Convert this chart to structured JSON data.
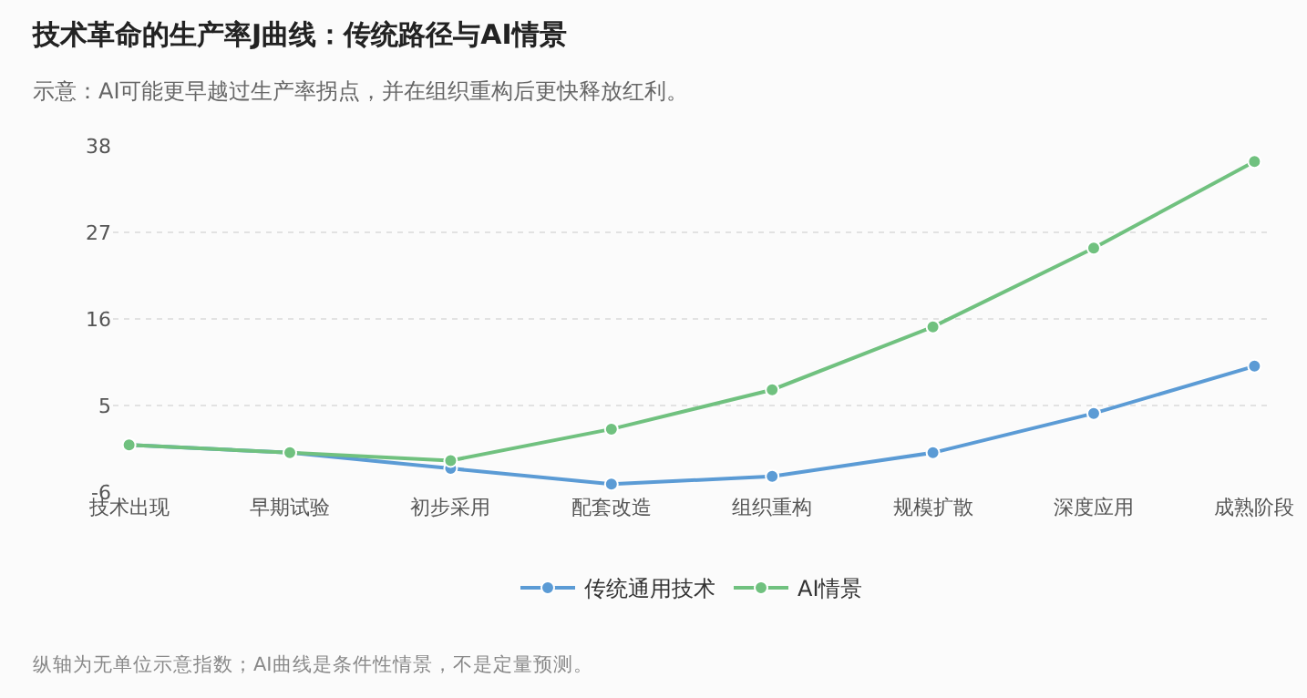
{
  "chart_data": {
    "type": "line",
    "title": "技术革命的生产率J曲线：传统路径与AI情景",
    "subtitle": "示意：AI可能更早越过生产率拐点，并在组织重构后更快释放红利。",
    "categories": [
      "技术出现",
      "早期试验",
      "初步采用",
      "配套改造",
      "组织重构",
      "规模扩散",
      "深度应用",
      "成熟阶段"
    ],
    "series": [
      {
        "name": "传统通用技术",
        "color": "#5b9bd5",
        "values": [
          0,
          -1,
          -3,
          -5,
          -4,
          -1,
          4,
          10
        ]
      },
      {
        "name": "AI情景",
        "color": "#70c17f",
        "values": [
          0,
          -1,
          -2,
          2,
          7,
          15,
          25,
          36
        ]
      }
    ],
    "ylim": [
      -6,
      38
    ],
    "yticks": [
      -6,
      5,
      16,
      27,
      38
    ],
    "grid": "y",
    "legend": "bottom",
    "marker": "circle",
    "line_style": "solid",
    "annotations": [
      "纵轴为无单位示意指数；AI曲线是条件性情景，不是定量预测。"
    ]
  }
}
